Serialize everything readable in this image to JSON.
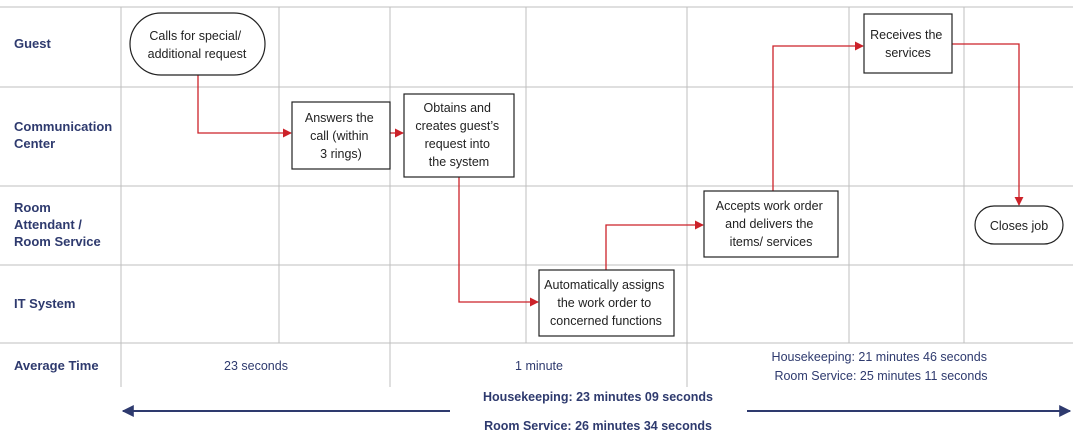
{
  "lanes": [
    {
      "label_lines": [
        "Guest"
      ]
    },
    {
      "label_lines": [
        "Communication",
        "Center"
      ]
    },
    {
      "label_lines": [
        "Room",
        "Attendant  /",
        "Room Service"
      ]
    },
    {
      "label_lines": [
        "IT System"
      ]
    },
    {
      "label_lines": [
        "Average Time"
      ]
    }
  ],
  "steps": [
    {
      "lines": [
        "Calls for special/",
        "additional request"
      ]
    },
    {
      "lines": [
        "Answers the",
        "call (within",
        "3 rings)"
      ]
    },
    {
      "lines": [
        "Obtains and",
        "creates guest’s",
        "request into",
        "the system"
      ]
    },
    {
      "lines": [
        "Automatically assigns",
        "the work order to",
        "concerned functions"
      ]
    },
    {
      "lines": [
        "Accepts work order",
        "and delivers the",
        "items/ services"
      ]
    },
    {
      "lines": [
        "Receives the",
        "services"
      ]
    },
    {
      "lines": [
        "Closes job"
      ]
    }
  ],
  "average_times": [
    {
      "lines": [
        "23 seconds"
      ]
    },
    {
      "lines": [
        "1 minute"
      ]
    },
    {
      "lines": [
        "Housekeeping:  21 minutes 46 seconds",
        "Room Service:  25 minutes 11 seconds"
      ]
    }
  ],
  "totals": {
    "housekeeping": "Housekeeping: 23 minutes  09 seconds",
    "room_service": "Room Service: 26 minutes 34 seconds"
  },
  "colors": {
    "flow_arrow": "#cc2229",
    "label_text": "#2e3a6e",
    "timeline_arrow": "#2e3a6e",
    "grid": "#bfbfbf"
  }
}
